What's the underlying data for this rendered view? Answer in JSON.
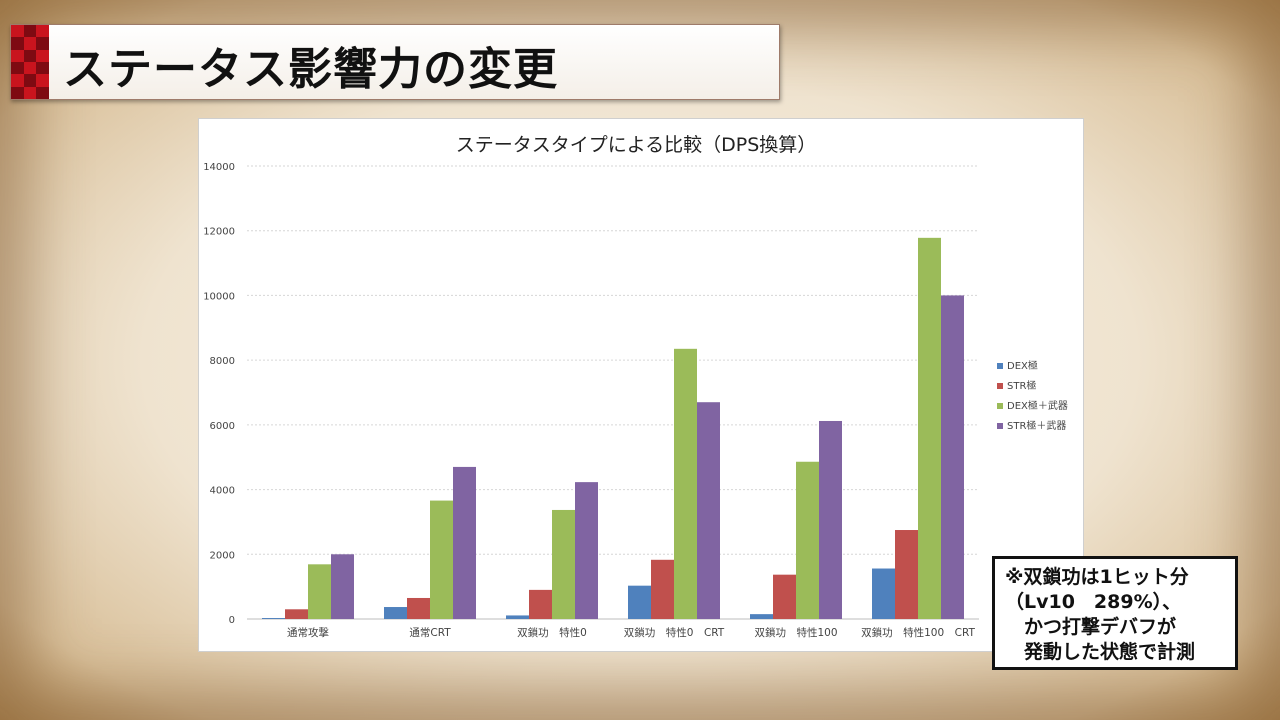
{
  "page": {
    "title": "ステータス影響力の変更"
  },
  "note": {
    "lines": [
      "※双鎖功は1ヒット分",
      "（Lv10　289%）、",
      "　かつ打撃デバフが",
      "　発動した状態で計測"
    ]
  },
  "colors": {
    "series": [
      "#4f81bd",
      "#c0504d",
      "#9bbb59",
      "#8064a2"
    ],
    "title_red": "#c9141e"
  },
  "chart_data": {
    "type": "bar",
    "title": "ステータスタイプによる比較（DPS換算）",
    "xlabel": "",
    "ylabel": "",
    "ylim": [
      0,
      14000
    ],
    "yticks": [
      0,
      2000,
      4000,
      6000,
      8000,
      10000,
      12000,
      14000
    ],
    "grid": true,
    "legend_position": "right",
    "categories": [
      "通常攻撃",
      "通常CRT",
      "双鎖功　特性0",
      "双鎖功　特性0　CRT",
      "双鎖功　特性100",
      "双鎖功　特性100　CRT"
    ],
    "series": [
      {
        "name": "DEX極",
        "values": [
          30,
          370,
          110,
          1030,
          150,
          1560
        ]
      },
      {
        "name": "STR極",
        "values": [
          300,
          650,
          900,
          1830,
          1370,
          2750
        ]
      },
      {
        "name": "DEX極＋武器",
        "values": [
          1690,
          3660,
          3370,
          8350,
          4860,
          11780
        ]
      },
      {
        "name": "STR極＋武器",
        "values": [
          2000,
          4700,
          4230,
          6700,
          6120,
          10000
        ]
      }
    ]
  }
}
